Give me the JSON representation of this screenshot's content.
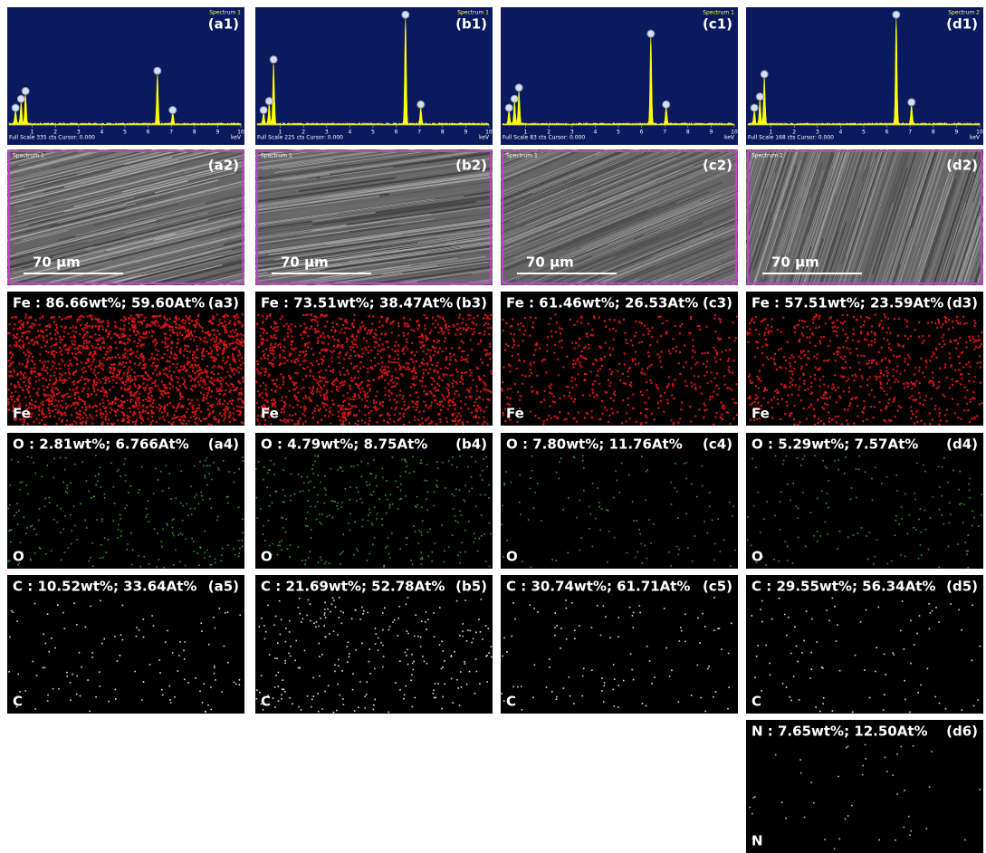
{
  "axis_ticks": [
    1,
    2,
    3,
    4,
    5,
    6,
    7,
    8,
    9,
    10
  ],
  "axis_unit": "keV",
  "columns": [
    {
      "spectrum": {
        "label": "(a1)",
        "name": "Spectrum 1",
        "footer": "Full Scale 335 cts Cursor: 0.000"
      },
      "sem": {
        "label": "(a2)",
        "name": "Spectrum 1",
        "scale_bar": "70 µm"
      },
      "maps": [
        {
          "label": "(a3)",
          "title": "Fe : 86.66wt%; 59.60At%",
          "element": "Fe"
        },
        {
          "label": "(a4)",
          "title": "O : 2.81wt%; 6.766At%",
          "element": "O"
        },
        {
          "label": "(a5)",
          "title": "C : 10.52wt%; 33.64At%",
          "element": "C"
        }
      ]
    },
    {
      "spectrum": {
        "label": "(b1)",
        "name": "Spectrum 1",
        "footer": "Full Scale 225 cts Cursor: 0.000"
      },
      "sem": {
        "label": "(b2)",
        "name": "Spectrum 1",
        "scale_bar": "70 µm"
      },
      "maps": [
        {
          "label": "(b3)",
          "title": "Fe : 73.51wt%; 38.47At%",
          "element": "Fe"
        },
        {
          "label": "(b4)",
          "title": "O : 4.79wt%; 8.75At%",
          "element": "O"
        },
        {
          "label": "(b5)",
          "title": "C : 21.69wt%; 52.78At%",
          "element": "C"
        }
      ]
    },
    {
      "spectrum": {
        "label": "(c1)",
        "name": "Spectrum 1",
        "footer": "Full Scale 83 cts Cursor: 0.000"
      },
      "sem": {
        "label": "(c2)",
        "name": "Spectrum 1",
        "scale_bar": "70 µm"
      },
      "maps": [
        {
          "label": "(c3)",
          "title": "Fe : 61.46wt%; 26.53At%",
          "element": "Fe"
        },
        {
          "label": "(c4)",
          "title": "O : 7.80wt%; 11.76At%",
          "element": "O"
        },
        {
          "label": "(c5)",
          "title": "C : 30.74wt%; 61.71At%",
          "element": "C"
        }
      ]
    },
    {
      "spectrum": {
        "label": "(d1)",
        "name": "Spectrum 2",
        "footer": "Full Scale 168 cts Cursor: 0.000"
      },
      "sem": {
        "label": "(d2)",
        "name": "Spectrum 2",
        "scale_bar": "70 µm"
      },
      "maps": [
        {
          "label": "(d3)",
          "title": "Fe : 57.51wt%; 23.59At%",
          "element": "Fe"
        },
        {
          "label": "(d4)",
          "title": "O : 5.29wt%; 7.57At%",
          "element": "O"
        },
        {
          "label": "(d5)",
          "title": "C : 29.55wt%; 56.34At%",
          "element": "C"
        },
        {
          "label": "(d6)",
          "title": "N : 7.65wt%; 12.50At%",
          "element": "N"
        }
      ]
    }
  ]
}
